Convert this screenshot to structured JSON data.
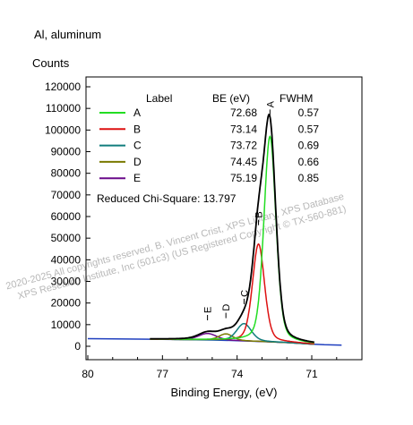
{
  "colors": {
    "envelope": "#000000",
    "background_line": "#1f3fbf",
    "A": "#22dd22",
    "B": "#dd1111",
    "C": "#117d7d",
    "D": "#7a7a00",
    "E": "#6a0a8a",
    "watermark": "#b8b8b8"
  },
  "chart_data": {
    "type": "line",
    "title": "Al, aluminum",
    "ylabel": "Counts",
    "xlabel": "Binding Energy, (eV)",
    "xlim": [
      80,
      69.8
    ],
    "ylim": [
      -5000,
      125000
    ],
    "x_ticks": [
      80,
      77,
      74,
      71
    ],
    "y_ticks": [
      0,
      10000,
      20000,
      30000,
      40000,
      50000,
      60000,
      70000,
      80000,
      90000,
      100000,
      110000,
      120000
    ],
    "legend": {
      "placement": "top-left",
      "headers": {
        "label": "Label",
        "be": "BE (eV)",
        "fwhm": "FWHM"
      },
      "rows": [
        {
          "label": "A",
          "be": "72.68",
          "fwhm": "0.57",
          "color": "#22dd22"
        },
        {
          "label": "B",
          "be": "73.14",
          "fwhm": "0.57",
          "color": "#dd1111"
        },
        {
          "label": "C",
          "be": "73.72",
          "fwhm": "0.69",
          "color": "#117d7d"
        },
        {
          "label": "D",
          "be": "74.45",
          "fwhm": "0.66",
          "color": "#7a7a00"
        },
        {
          "label": "E",
          "be": "75.19",
          "fwhm": "0.85",
          "color": "#6a0a8a"
        }
      ]
    },
    "annotation": "Reduced Chi-Square: 13.797",
    "background": [
      {
        "x": 80,
        "y": 3500
      },
      {
        "x": 77,
        "y": 3200
      },
      {
        "x": 75,
        "y": 2900
      },
      {
        "x": 74,
        "y": 2600
      },
      {
        "x": 73,
        "y": 2200
      },
      {
        "x": 72,
        "y": 1700
      },
      {
        "x": 71,
        "y": 1000
      },
      {
        "x": 70.5,
        "y": 700
      },
      {
        "x": 69.8,
        "y": 500
      }
    ],
    "peak_markers": [
      {
        "label": "A",
        "x": 72.68,
        "y": 107000
      },
      {
        "label": "B",
        "x": 73.14,
        "y": 56000
      },
      {
        "label": "C",
        "x": 73.72,
        "y": 19500
      },
      {
        "label": "D",
        "x": 74.45,
        "y": 13000
      },
      {
        "label": "E",
        "x": 75.19,
        "y": 12000
      }
    ],
    "series": [
      {
        "name": "A",
        "peak_x": 72.68,
        "fwhm": 0.57,
        "height": 95000
      },
      {
        "name": "B",
        "peak_x": 73.14,
        "fwhm": 0.57,
        "height": 45000
      },
      {
        "name": "C",
        "peak_x": 73.72,
        "fwhm": 0.69,
        "height": 8000
      },
      {
        "name": "D",
        "peak_x": 74.45,
        "fwhm": 0.66,
        "height": 3000
      },
      {
        "name": "E",
        "peak_x": 75.19,
        "fwhm": 0.85,
        "height": 3000
      }
    ]
  },
  "watermark": {
    "line1": "2020-2025 All copyrights reserved,  B. Vincent Crist,  XPS Library, XPS Database",
    "line2": "XPS Research Institute, Inc (501c3)   (US Registered Copyright © TX-560-881)"
  }
}
